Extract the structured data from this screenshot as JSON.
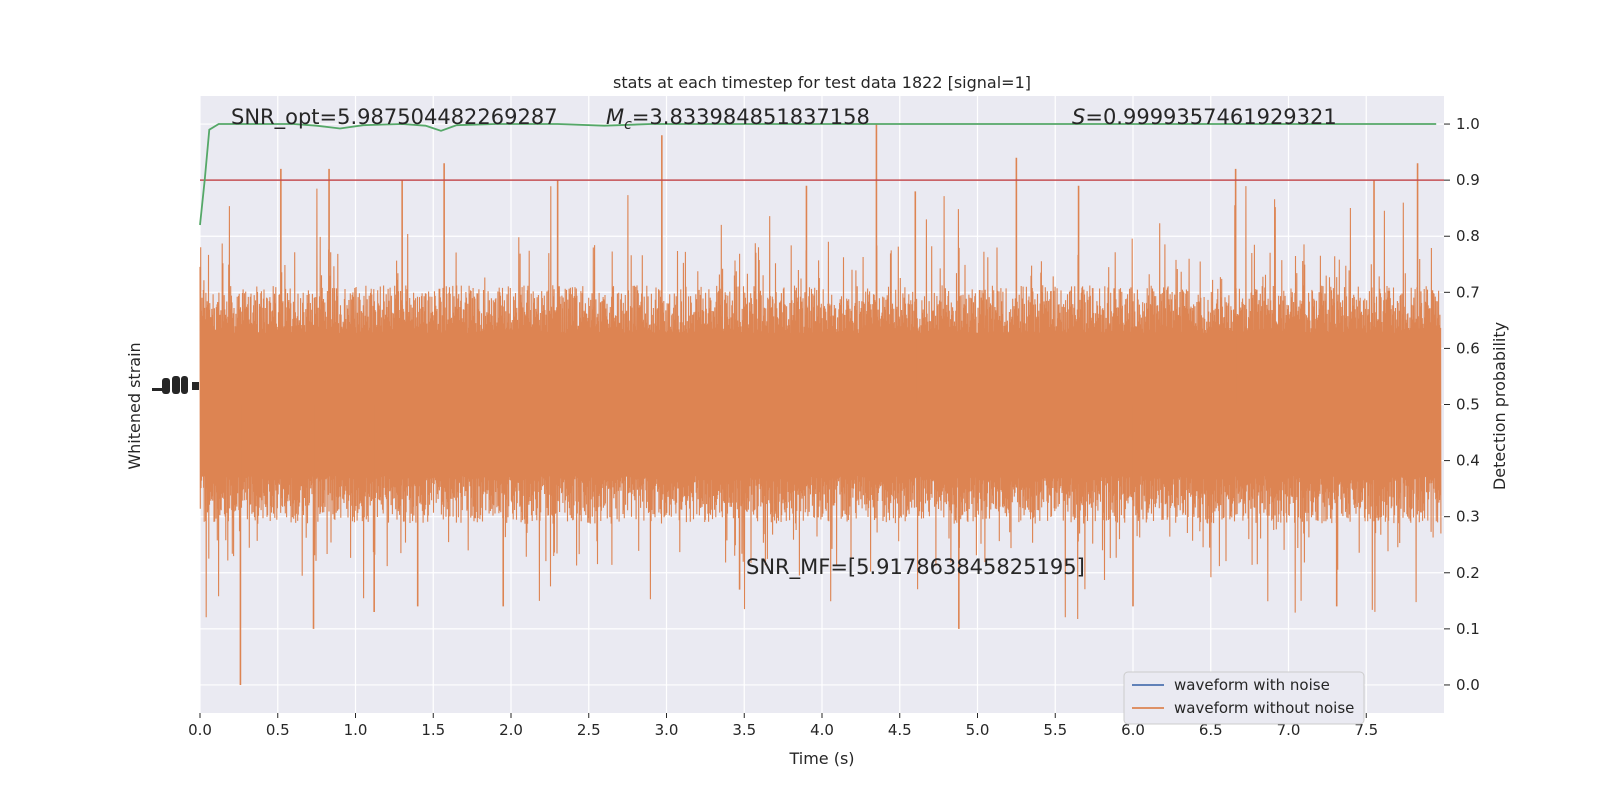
{
  "chart_data": {
    "type": "line",
    "title": "stats at each timestep for test data 1822 [signal=1]",
    "xlabel": "Time (s)",
    "ylabel_left": "Whitened strain",
    "ylabel_right": "Detection probability",
    "xlim": [
      0,
      8
    ],
    "ylim_right": [
      -0.05,
      1.05
    ],
    "x_ticks": [
      "0.0",
      "0.5",
      "1.0",
      "1.5",
      "2.0",
      "2.5",
      "3.0",
      "3.5",
      "4.0",
      "4.5",
      "5.0",
      "5.5",
      "6.0",
      "6.5",
      "7.0",
      "7.5"
    ],
    "y_ticks_right": [
      "0.0",
      "0.1",
      "0.2",
      "0.3",
      "0.4",
      "0.5",
      "0.6",
      "0.7",
      "0.8",
      "0.9",
      "1.0"
    ],
    "grid": true,
    "legend_position": "lower-right",
    "legend": [
      "waveform with noise",
      "waveform without noise"
    ],
    "colors": {
      "waveform_with_noise": "#4c72b0",
      "waveform_without_noise": "#dd8452",
      "detection_probability": "#55a868",
      "threshold": "#c44e52",
      "axes_background": "#eaeaf2",
      "grid": "#ffffff"
    },
    "annotations": {
      "snr_opt": "SNR_opt=5.987504482269287",
      "mc_symbol": "M",
      "mc_sub": "c",
      "mc_value": "=3.833984851837158",
      "s_symbol": "S",
      "s_value": "=0.9999357461929321",
      "snr_mf": "SNR_MF=[5.917863845825195]"
    },
    "threshold": 0.9,
    "detection_probability": {
      "x": [
        0.0,
        0.03,
        0.06,
        0.12,
        0.3,
        0.6,
        0.75,
        0.9,
        1.05,
        1.3,
        1.45,
        1.55,
        1.65,
        1.9,
        2.3,
        2.6,
        2.9,
        3.3,
        4.0,
        5.0,
        6.0,
        7.0,
        7.95
      ],
      "y": [
        0.82,
        0.9,
        0.99,
        1.0,
        1.0,
        1.0,
        0.997,
        0.992,
        0.998,
        1.0,
        0.997,
        0.988,
        0.998,
        1.0,
        1.0,
        0.997,
        1.0,
        1.0,
        1.0,
        1.0,
        1.0,
        1.0,
        1.0
      ]
    },
    "waveform_without_noise": {
      "description_free": true,
      "band_center": 0.5,
      "band_halfwidth": 0.17,
      "spike_times": [
        0.26,
        0.52,
        0.73,
        0.83,
        1.12,
        1.3,
        1.4,
        1.57,
        1.95,
        2.3,
        2.97,
        3.47,
        3.9,
        4.35,
        4.6,
        4.88,
        5.25,
        5.65,
        6.0,
        6.66,
        7.31,
        7.55,
        7.83
      ],
      "spike_values": [
        0.0,
        0.92,
        0.1,
        0.92,
        0.13,
        0.9,
        0.14,
        0.93,
        0.14,
        0.9,
        0.98,
        0.17,
        0.89,
        1.0,
        0.88,
        0.1,
        0.94,
        0.89,
        0.14,
        0.92,
        0.14,
        0.9,
        0.93
      ]
    }
  }
}
